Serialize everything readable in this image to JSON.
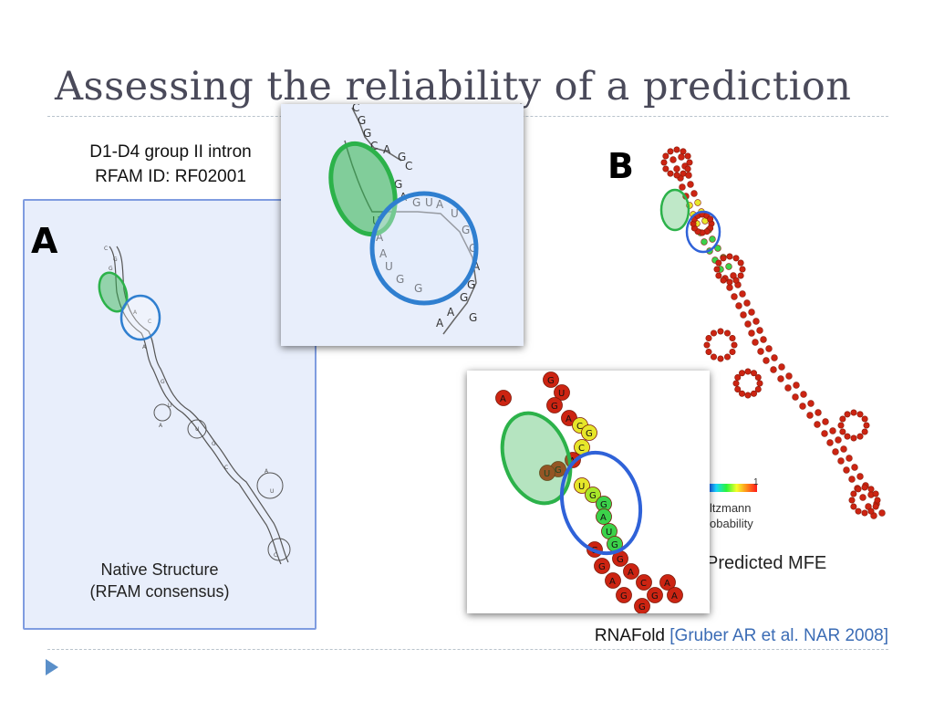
{
  "slide": {
    "title": "Assessing the reliability of a prediction",
    "caption_line1": "D1-D4 group II intron",
    "caption_line2": "RFAM ID: RF02001",
    "panel_a_label": "A",
    "panel_b_label": "B",
    "native_line1": "Native Structure",
    "native_line2": "(RFAM consensus)",
    "colorbar_max": "1",
    "boltzmann_line1": "ltzmann",
    "boltzmann_line2": "obability",
    "predicted_label": "Predicted MFE",
    "footer_tool": "RNAFold",
    "footer_ref": "[Gruber AR et al. NAR 2008]",
    "bullet_icon": "triangle-bullet-icon"
  },
  "colors": {
    "title": "#4a4a5a",
    "panel_bg": "#e8eefb",
    "panel_border": "#7f9ce0",
    "green_ellipse": "#2cb24a",
    "blue_ellipse": "#2f7fd0",
    "base_red": "#d42a14",
    "reference_blue": "#3b6cb5"
  },
  "zoom_native": {
    "bases": [
      "C",
      "G",
      "G",
      "C",
      "A",
      "G",
      "C",
      "G",
      "A",
      "G",
      "U",
      "A",
      "U",
      "G",
      "G",
      "A",
      "G",
      "G",
      "A",
      "A",
      "G",
      "G",
      "U",
      "A",
      "A",
      "U",
      "G"
    ]
  },
  "zoom_mfe": {
    "bases": [
      "G",
      "U",
      "G",
      "A",
      "C",
      "G",
      "C",
      "A",
      "G",
      "U",
      "U",
      "G",
      "G",
      "A",
      "U",
      "G",
      "G",
      "A",
      "C",
      "G",
      "G",
      "G",
      "A",
      "G",
      "G",
      "A",
      "A",
      "A"
    ]
  }
}
